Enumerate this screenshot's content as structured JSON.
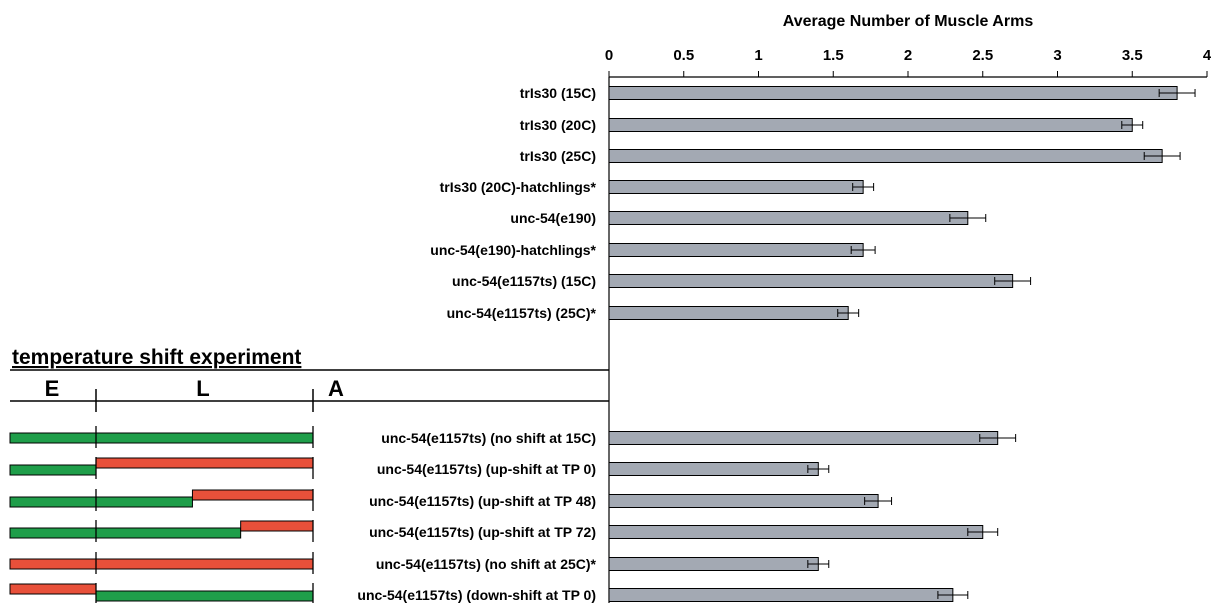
{
  "chart_data": {
    "type": "bar",
    "orientation": "horizontal",
    "title": "Average Number of Muscle Arms",
    "xlim": [
      0,
      4
    ],
    "x_ticks": [
      "0",
      "0.5",
      "1",
      "1.5",
      "2",
      "2.5",
      "3",
      "3.5",
      "4"
    ],
    "axis_position": "top",
    "grid": false,
    "bar_color": "#a3a9b3",
    "categories": [
      "trIs30 (15C)",
      "trIs30 (20C)",
      "trIs30 (25C)",
      "trIs30 (20C)-hatchlings*",
      "unc-54(e190)",
      "unc-54(e190)-hatchlings*",
      "unc-54(e1157ts) (15C)",
      "unc-54(e1157ts) (25C)*",
      "unc-54(e1157ts) (no shift at 15C)",
      "unc-54(e1157ts) (up-shift at TP 0)",
      "unc-54(e1157ts) (up-shift at TP 48)",
      "unc-54(e1157ts) (up-shift at TP 72)",
      "unc-54(e1157ts) (no shift at 25C)*",
      "unc-54(e1157ts) (down-shift at TP 0)"
    ],
    "values": [
      3.8,
      3.5,
      3.7,
      1.7,
      2.4,
      1.7,
      2.7,
      1.6,
      2.6,
      1.4,
      1.8,
      2.5,
      1.4,
      2.3
    ],
    "errors": [
      0.12,
      0.07,
      0.12,
      0.07,
      0.12,
      0.08,
      0.12,
      0.07,
      0.12,
      0.07,
      0.09,
      0.1,
      0.07,
      0.1
    ]
  },
  "temperature_shift": {
    "heading": "temperature shift experiment",
    "stages": [
      "E",
      "L",
      "A"
    ],
    "colors": {
      "15C": "#1f9e4a",
      "25C": "#e8503a"
    },
    "rows": [
      {
        "pre": "15C",
        "post": "15C",
        "switch_hours": null
      },
      {
        "pre": "15C",
        "post": "25C",
        "switch_hours": 0
      },
      {
        "pre": "15C",
        "post": "25C",
        "switch_hours": 48
      },
      {
        "pre": "15C",
        "post": "25C",
        "switch_hours": 72
      },
      {
        "pre": "25C",
        "post": "25C",
        "switch_hours": null
      },
      {
        "pre": "25C",
        "post": "15C",
        "switch_hours": 0
      }
    ]
  }
}
